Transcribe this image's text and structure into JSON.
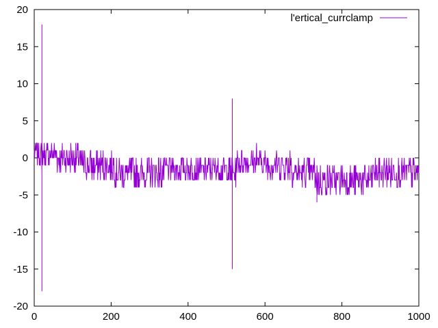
{
  "chart_data": {
    "type": "line",
    "title": "",
    "xlabel": "",
    "ylabel": "",
    "xlim": [
      0,
      1000
    ],
    "ylim": [
      -20,
      20
    ],
    "grid": false,
    "legend_position": "top-right",
    "x_ticks": [
      0,
      200,
      400,
      600,
      800,
      1000
    ],
    "y_ticks": [
      -20,
      -15,
      -10,
      -5,
      0,
      5,
      10,
      15,
      20
    ],
    "series": [
      {
        "name": "l'ertical_currclamp",
        "color": "#9400d3",
        "segments": [
          {
            "x_start": 0,
            "x_end": 60,
            "low": -1,
            "high": 2
          },
          {
            "x_start": 60,
            "x_end": 120,
            "low": -2,
            "high": 2
          },
          {
            "x_start": 120,
            "x_end": 210,
            "low": -3,
            "high": 1
          },
          {
            "x_start": 210,
            "x_end": 340,
            "low": -4,
            "high": 0
          },
          {
            "x_start": 340,
            "x_end": 505,
            "low": -3,
            "high": 0
          },
          {
            "x_start": 525,
            "x_end": 600,
            "low": -2,
            "high": 1
          },
          {
            "x_start": 600,
            "x_end": 670,
            "low": -3,
            "high": 1
          },
          {
            "x_start": 670,
            "x_end": 730,
            "low": -4,
            "high": 0
          },
          {
            "x_start": 730,
            "x_end": 880,
            "low": -5,
            "high": -1
          },
          {
            "x_start": 880,
            "x_end": 1000,
            "low": -4,
            "high": 0
          }
        ],
        "spikes": [
          {
            "x": 20,
            "values": [
              -2,
              18,
              -18,
              3,
              2
            ]
          },
          {
            "x": 515,
            "values": [
              0,
              3,
              -15,
              8,
              -12,
              0
            ]
          },
          {
            "x": 578,
            "values": [
              2,
              -1,
              2
            ]
          },
          {
            "x": 665,
            "values": [
              1,
              -3,
              1
            ]
          },
          {
            "x": 735,
            "values": [
              -5,
              -6,
              -1
            ]
          }
        ]
      }
    ]
  }
}
